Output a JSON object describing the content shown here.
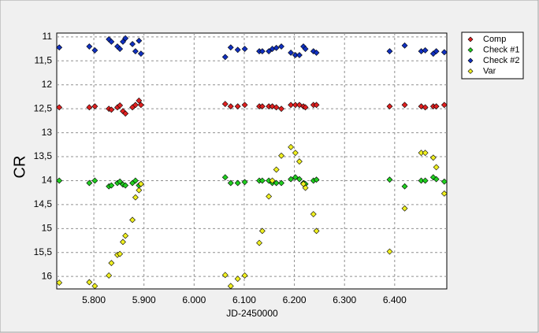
{
  "chart_data": {
    "type": "scatter",
    "x_label": "JD-2450000",
    "y_label": "CR",
    "xlim": [
      5726,
      6504
    ],
    "ylim": [
      10.92,
      16.26
    ],
    "y_reversed": true,
    "grid": true,
    "legend": "outside-top-right",
    "xticks": [
      {
        "value": 5800,
        "label": "5.800"
      },
      {
        "value": 5900,
        "label": "5.900"
      },
      {
        "value": 6000,
        "label": "6.000"
      },
      {
        "value": 6100,
        "label": "6.100"
      },
      {
        "value": 6200,
        "label": "6.200"
      },
      {
        "value": 6300,
        "label": "6.300"
      },
      {
        "value": 6400,
        "label": "6.400"
      }
    ],
    "yticks": [
      11,
      {
        "value": 11.5,
        "label": "11,5"
      },
      12,
      {
        "value": 12.5,
        "label": "12,5"
      },
      13,
      {
        "value": 13.5,
        "label": "13,5"
      },
      14,
      {
        "value": 14.5,
        "label": "14,5"
      },
      15,
      {
        "value": 15.5,
        "label": "15,5"
      },
      16
    ],
    "x": [
      5731,
      5791,
      5802,
      5830,
      5835,
      5847,
      5852,
      5858,
      5863,
      5877,
      5883,
      5890,
      5894,
      6062,
      6073,
      6087,
      6101,
      6130,
      6136,
      6149,
      6156,
      6164,
      6174,
      6193,
      6202,
      6210,
      6218,
      6222,
      6238,
      6244,
      6390,
      6420,
      6453,
      6461,
      6477,
      6483,
      6499
    ],
    "series": [
      {
        "name": "Comp",
        "color": "#e02020",
        "values": [
          12.47,
          12.47,
          12.45,
          12.5,
          12.52,
          12.47,
          12.43,
          12.55,
          12.6,
          12.47,
          12.42,
          12.33,
          12.42,
          12.4,
          12.45,
          12.45,
          12.42,
          12.45,
          12.45,
          12.45,
          12.45,
          12.47,
          12.5,
          12.42,
          12.42,
          12.42,
          12.45,
          12.47,
          12.42,
          12.42,
          12.45,
          12.42,
          12.45,
          12.47,
          12.45,
          12.45,
          12.42
        ]
      },
      {
        "name": "Check #1",
        "color": "#20d020",
        "values": [
          14.0,
          14.05,
          14.0,
          14.12,
          14.1,
          14.05,
          14.02,
          14.08,
          14.1,
          14.05,
          14.0,
          14.1,
          14.07,
          13.93,
          14.05,
          14.05,
          14.03,
          14.0,
          14.0,
          14.0,
          14.05,
          14.05,
          14.05,
          13.97,
          13.93,
          13.97,
          14.05,
          14.07,
          14.0,
          13.98,
          13.98,
          14.12,
          14.0,
          14.0,
          13.93,
          13.97,
          14.02
        ]
      },
      {
        "name": "Check #2",
        "color": "#1030c0",
        "values": [
          11.22,
          11.2,
          11.28,
          11.05,
          11.1,
          11.2,
          11.25,
          11.1,
          11.03,
          11.15,
          11.3,
          11.08,
          11.35,
          11.42,
          11.22,
          11.27,
          11.25,
          11.3,
          11.3,
          11.3,
          11.25,
          11.23,
          11.2,
          11.33,
          11.38,
          11.38,
          11.2,
          11.25,
          11.3,
          11.33,
          11.3,
          11.18,
          11.3,
          11.28,
          11.35,
          11.3,
          11.32
        ]
      },
      {
        "name": "Var",
        "color": "#f0f020",
        "values": [
          16.13,
          16.12,
          16.2,
          15.98,
          15.72,
          15.55,
          15.53,
          15.28,
          15.15,
          14.82,
          14.35,
          14.2,
          14.07,
          15.97,
          16.2,
          16.05,
          15.98,
          15.3,
          15.05,
          14.33,
          14.0,
          13.77,
          13.48,
          13.3,
          13.42,
          13.6,
          14.07,
          14.15,
          14.7,
          15.05,
          15.48,
          14.58,
          13.42,
          13.42,
          13.52,
          13.72,
          14.27
        ]
      }
    ]
  }
}
